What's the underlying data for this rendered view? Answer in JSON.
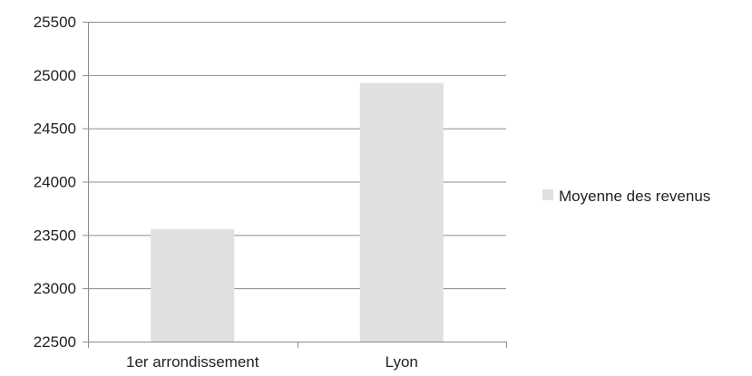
{
  "chart_data": {
    "type": "bar",
    "title": "",
    "xlabel": "",
    "ylabel": "",
    "categories": [
      "1er arrondissement",
      "Lyon"
    ],
    "series": [
      {
        "name": "Moyenne des revenus",
        "values": [
          23555,
          24925
        ],
        "color": "#e0e0e0"
      }
    ],
    "ylim": [
      22500,
      25500
    ],
    "yticks": [
      22500,
      23000,
      23500,
      24000,
      24500,
      25000,
      25500
    ],
    "grid": true,
    "legend_position": "right",
    "colors": {
      "gridline": "#8c8c8c",
      "axis": "#8c8c8c",
      "text": "#222222"
    }
  }
}
